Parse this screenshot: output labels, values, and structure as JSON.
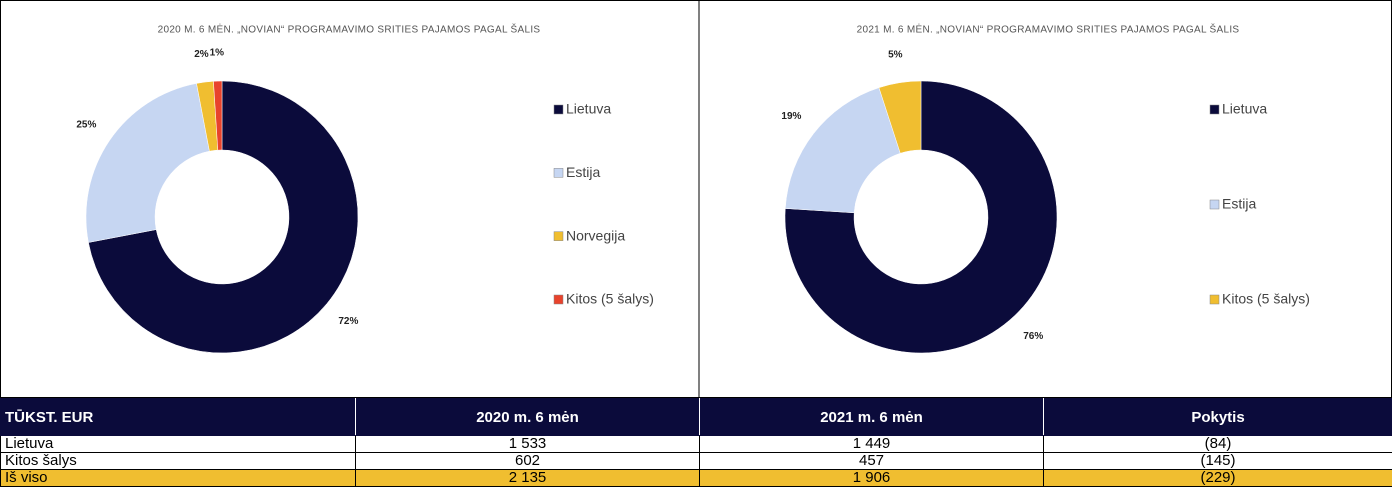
{
  "chart_data": [
    {
      "type": "donut",
      "title": "2020 M. 6 MĖN. „NOVIAN“ PROGRAMAVIMO SRITIES PAJAMOS PAGAL ŠALIS",
      "categories": [
        "Lietuva",
        "Estija",
        "Norvegija",
        "Kitos (5 šalys)"
      ],
      "values": [
        72,
        25,
        2,
        1
      ],
      "value_labels": [
        "72%",
        "25%",
        "2%",
        "1%"
      ],
      "colors": [
        "#0b0b3b",
        "#c6d6f2",
        "#f0be30",
        "#e8432c"
      ],
      "legend": "right"
    },
    {
      "type": "donut",
      "title": "2021 M. 6 MĖN. „NOVIAN“ PROGRAMAVIMO SRITIES PAJAMOS PAGAL ŠALIS",
      "categories": [
        "Lietuva",
        "Estija",
        "Kitos (5 šalys)"
      ],
      "values": [
        76,
        19,
        5
      ],
      "value_labels": [
        "76%",
        "19%",
        "5%"
      ],
      "colors": [
        "#0b0b3b",
        "#c6d6f2",
        "#f0be30"
      ],
      "legend": "right"
    }
  ],
  "table": {
    "header": [
      "TŪKST. EUR",
      "2020 m. 6 mėn",
      "2021 m. 6 mėn",
      "Pokytis"
    ],
    "rows": [
      [
        "Lietuva",
        "1 533",
        "1 449",
        "(84)"
      ],
      [
        "Kitos šalys",
        "602",
        "457",
        "(145)"
      ],
      [
        "Iš viso",
        "2 135",
        "1 906",
        "(229)"
      ]
    ]
  }
}
